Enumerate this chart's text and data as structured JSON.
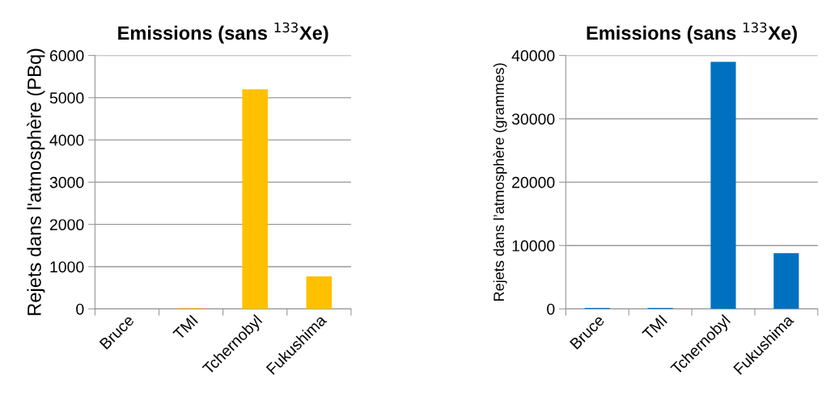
{
  "chart_data": [
    {
      "type": "bar",
      "title": "Emissions (sans $^{133}$Xe)",
      "ylabel": "Rejets dans l'atmosphère (PBq)",
      "categories": [
        "Bruce",
        "TMI",
        "Tchernobyl",
        "Fukushima"
      ],
      "values": [
        0,
        20,
        5200,
        770
      ],
      "color": "#ffc000",
      "ylim": [
        0,
        6000
      ],
      "yticks": [
        0,
        1000,
        2000,
        3000,
        4000,
        5000,
        6000
      ],
      "grid": "y"
    },
    {
      "type": "bar",
      "title": "Emissions (sans $^{133}$Xe)",
      "ylabel": "Rejets dans l’atmosphère (grammes)",
      "categories": [
        "Bruce",
        "TMI",
        "Tchernobyl",
        "Fukushima"
      ],
      "values": [
        150,
        150,
        39000,
        8800
      ],
      "color": "#0070c0",
      "ylim": [
        0,
        40000
      ],
      "yticks": [
        0,
        10000,
        20000,
        30000,
        40000
      ],
      "grid": "y"
    }
  ]
}
